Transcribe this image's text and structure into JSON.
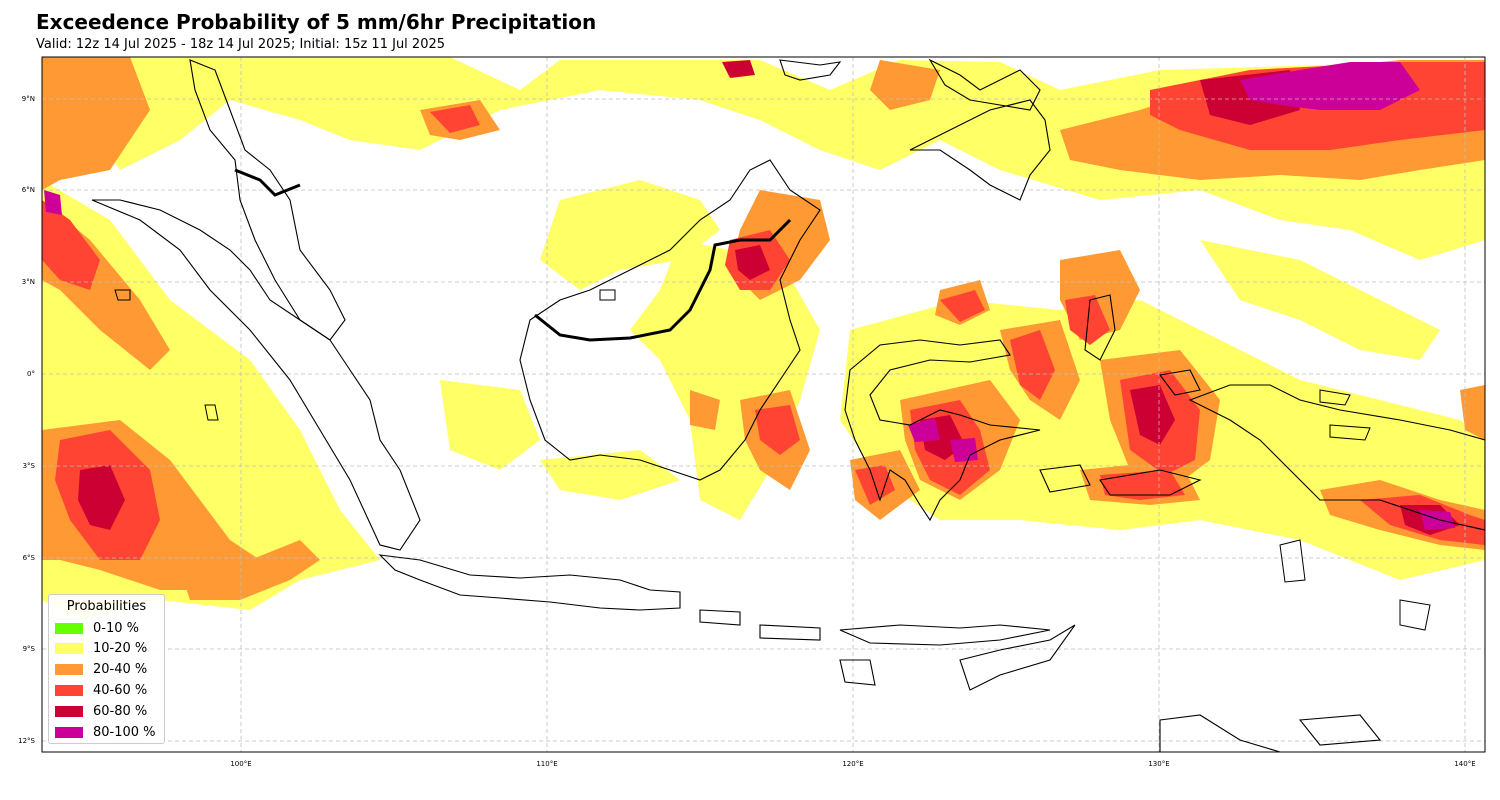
{
  "map": {
    "title": "Exceedence Probability of 5 mm/6hr Precipitation",
    "subtitle": "Valid: 12z 14 Jul 2025 - 18z 14 Jul 2025; Initial: 15z 11 Jul 2025",
    "lon_labels": [
      "100°E",
      "110°E",
      "120°E",
      "130°E",
      "140°E"
    ],
    "lat_labels": [
      "9°N",
      "6°N",
      "3°N",
      "0°",
      "3°S",
      "6°S",
      "9°S",
      "12°S"
    ],
    "grid": true
  },
  "legend": {
    "title": "Probabilities",
    "items": [
      {
        "label": "0-10 %",
        "color": "#66ff00"
      },
      {
        "label": "10-20 %",
        "color": "#ffff66"
      },
      {
        "label": "20-40 %",
        "color": "#ff9933"
      },
      {
        "label": "40-60 %",
        "color": "#ff4433"
      },
      {
        "label": "60-80 %",
        "color": "#cc0033"
      },
      {
        "label": "80-100 %",
        "color": "#cc0099"
      }
    ]
  }
}
